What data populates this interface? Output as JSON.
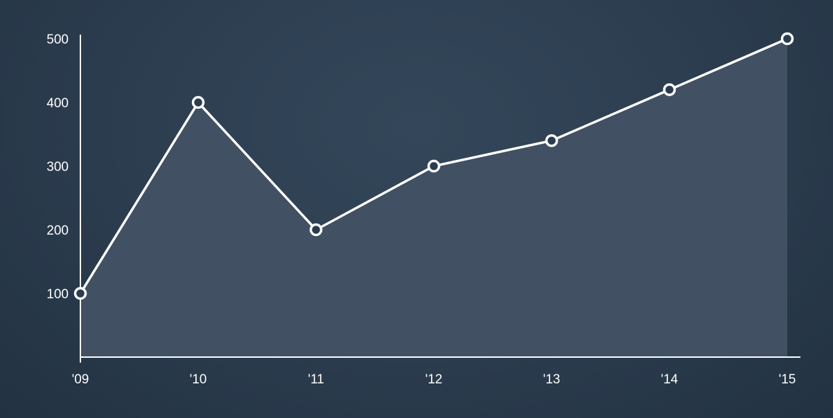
{
  "chart_data": {
    "type": "area",
    "title": "",
    "xlabel": "",
    "ylabel": "",
    "categories": [
      "'09",
      "'10",
      "'11",
      "'12",
      "'13",
      "'14",
      "'15"
    ],
    "series": [
      {
        "values": [
          100,
          400,
          200,
          300,
          340,
          420,
          500
        ]
      }
    ],
    "yticks": [
      "100",
      "200",
      "300",
      "400",
      "500"
    ],
    "ylim": [
      0,
      500
    ],
    "grid": false,
    "legend": "none",
    "colors": {
      "background": "#2b3c4e",
      "area_fill": "#415062",
      "line": "#ffffff",
      "marker_fill": "#2b3c4e",
      "axis": "#ffffff"
    }
  }
}
